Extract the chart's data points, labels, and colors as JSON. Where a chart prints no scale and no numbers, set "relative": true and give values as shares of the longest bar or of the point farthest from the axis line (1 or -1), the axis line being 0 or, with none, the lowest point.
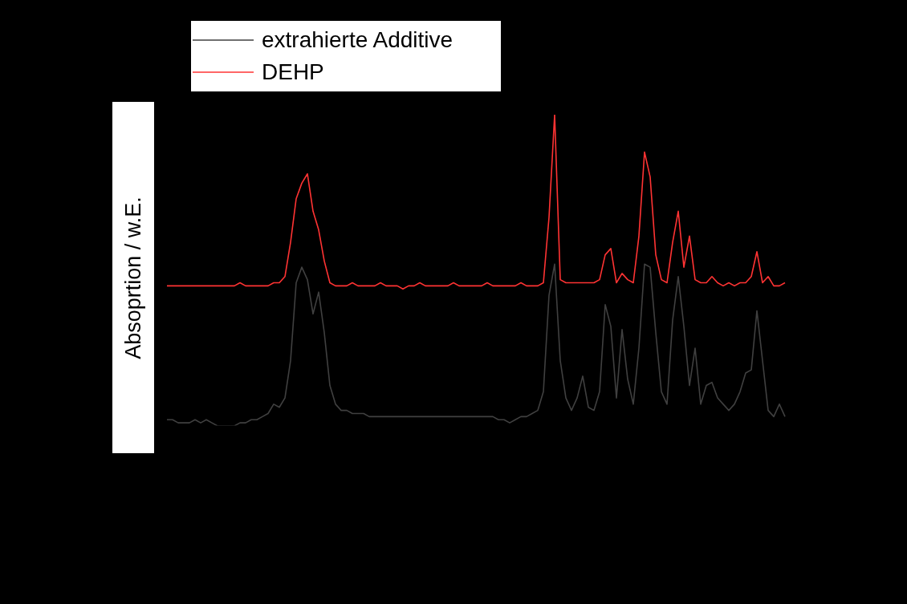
{
  "chart_data": {
    "type": "line",
    "ylabel": "Absoprtion / w.E.",
    "relative": true,
    "legend": "top left",
    "marker": "none",
    "line_style": "solid",
    "grid": false,
    "categories": [
      null,
      null,
      null,
      null,
      null,
      null,
      null,
      null,
      null,
      null,
      null,
      null,
      null,
      null,
      null,
      null,
      null,
      null,
      null,
      null,
      null,
      null,
      null,
      null,
      null,
      null,
      null,
      null,
      null,
      null,
      null,
      null,
      null,
      null,
      null,
      null,
      null,
      null,
      null,
      null,
      null,
      null,
      null,
      null,
      null,
      null,
      null,
      null,
      null,
      null,
      null,
      null,
      null,
      null,
      null,
      null,
      null,
      null,
      null,
      null,
      null,
      null,
      null,
      null,
      null,
      null,
      null,
      null,
      null,
      null,
      null,
      null,
      null,
      null,
      null,
      null,
      null,
      null,
      null,
      null,
      null,
      null,
      null,
      null,
      null,
      null,
      null,
      null,
      null,
      null,
      null,
      null,
      null,
      null,
      null,
      null,
      null,
      null,
      null,
      null,
      null,
      null,
      null,
      null,
      null,
      null,
      null,
      null,
      null,
      null,
      null
    ],
    "series": [
      {
        "name": "extrahierte Additive",
        "color": "#404040",
        "values": [
          0.02,
          0.02,
          0.01,
          0.01,
          0.01,
          0.02,
          0.01,
          0.02,
          0.01,
          0,
          0,
          0,
          0,
          0.01,
          0.01,
          0.02,
          0.02,
          0.03,
          0.04,
          0.07,
          0.06,
          0.09,
          0.21,
          0.46,
          0.51,
          0.47,
          0.36,
          0.43,
          0.3,
          0.13,
          0.07,
          0.05,
          0.05,
          0.04,
          0.04,
          0.04,
          0.03,
          0.03,
          0.03,
          0.03,
          0.03,
          0.03,
          0.03,
          0.03,
          0.03,
          0.03,
          0.03,
          0.03,
          0.03,
          0.03,
          0.03,
          0.03,
          0.03,
          0.03,
          0.03,
          0.03,
          0.03,
          0.03,
          0.03,
          0.02,
          0.02,
          0.01,
          0.02,
          0.03,
          0.03,
          0.04,
          0.05,
          0.11,
          0.42,
          0.52,
          0.21,
          0.09,
          0.05,
          0.09,
          0.16,
          0.06,
          0.05,
          0.11,
          0.39,
          0.32,
          0.09,
          0.31,
          0.15,
          0.07,
          0.25,
          0.52,
          0.51,
          0.3,
          0.11,
          0.07,
          0.34,
          0.48,
          0.32,
          0.13,
          0.25,
          0.07,
          0.13,
          0.14,
          0.09,
          0.07,
          0.05,
          0.07,
          0.11,
          0.17,
          0.18,
          0.37,
          0.21,
          0.05,
          0.03,
          0.07,
          0.03
        ]
      },
      {
        "name": "DEHP",
        "color": "#ff3333",
        "values": [
          0.45,
          0.45,
          0.45,
          0.45,
          0.45,
          0.45,
          0.45,
          0.45,
          0.45,
          0.45,
          0.45,
          0.45,
          0.45,
          0.46,
          0.45,
          0.45,
          0.45,
          0.45,
          0.45,
          0.46,
          0.46,
          0.48,
          0.59,
          0.73,
          0.78,
          0.81,
          0.69,
          0.63,
          0.53,
          0.46,
          0.45,
          0.45,
          0.45,
          0.46,
          0.45,
          0.45,
          0.45,
          0.45,
          0.46,
          0.45,
          0.45,
          0.45,
          0.44,
          0.45,
          0.45,
          0.46,
          0.45,
          0.45,
          0.45,
          0.45,
          0.45,
          0.46,
          0.45,
          0.45,
          0.45,
          0.45,
          0.45,
          0.46,
          0.45,
          0.45,
          0.45,
          0.45,
          0.45,
          0.46,
          0.45,
          0.45,
          0.45,
          0.46,
          0.67,
          1,
          0.47,
          0.46,
          0.46,
          0.46,
          0.46,
          0.46,
          0.46,
          0.47,
          0.55,
          0.57,
          0.46,
          0.49,
          0.47,
          0.46,
          0.61,
          0.88,
          0.8,
          0.55,
          0.47,
          0.46,
          0.59,
          0.69,
          0.51,
          0.61,
          0.47,
          0.46,
          0.46,
          0.48,
          0.46,
          0.45,
          0.46,
          0.45,
          0.46,
          0.46,
          0.48,
          0.56,
          0.46,
          0.48,
          0.45,
          0.45,
          0.46
        ]
      }
    ]
  }
}
